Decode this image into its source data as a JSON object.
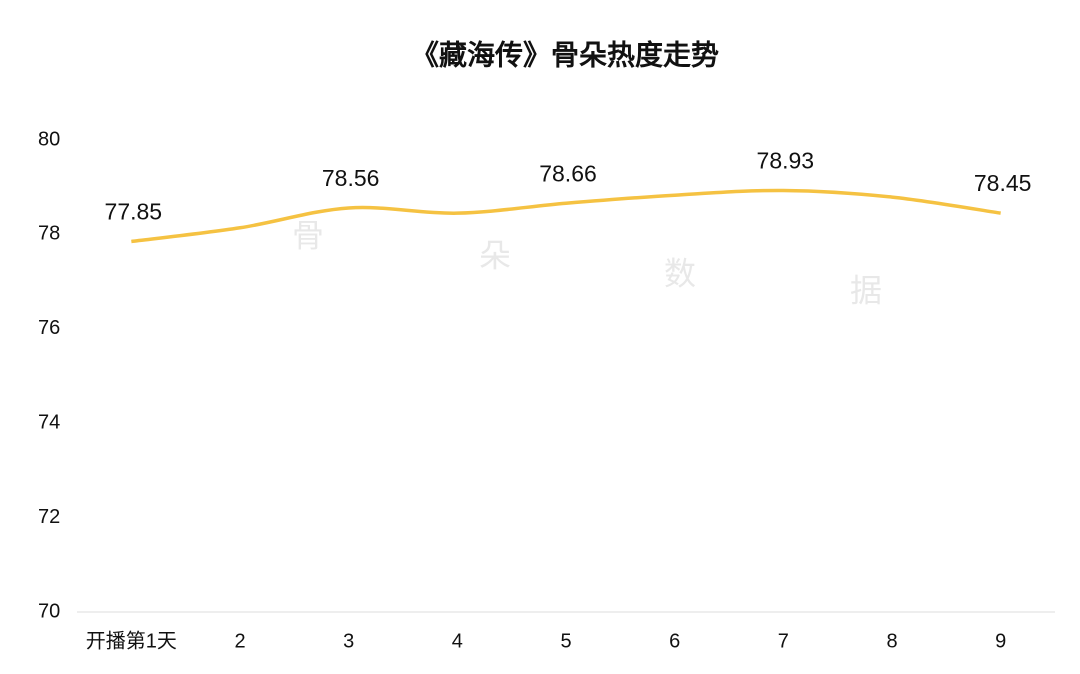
{
  "chart_data": {
    "type": "line",
    "title": "《藏海传》骨朵热度走势",
    "categories": [
      "开播第1天",
      "2",
      "3",
      "4",
      "5",
      "6",
      "7",
      "8",
      "9"
    ],
    "values": [
      77.85,
      78.14,
      78.56,
      78.45,
      78.66,
      78.83,
      78.93,
      78.79,
      78.45
    ],
    "value_labels": [
      "77.85",
      null,
      "78.56",
      null,
      "78.66",
      null,
      "78.93",
      null,
      "78.45"
    ],
    "color": "#f5c242",
    "smooth": true,
    "ylim": [
      70,
      80
    ],
    "yticks": [
      70,
      72,
      74,
      76,
      78,
      80
    ],
    "grid": false,
    "watermark": [
      "骨",
      "朵",
      "数",
      "据"
    ]
  }
}
